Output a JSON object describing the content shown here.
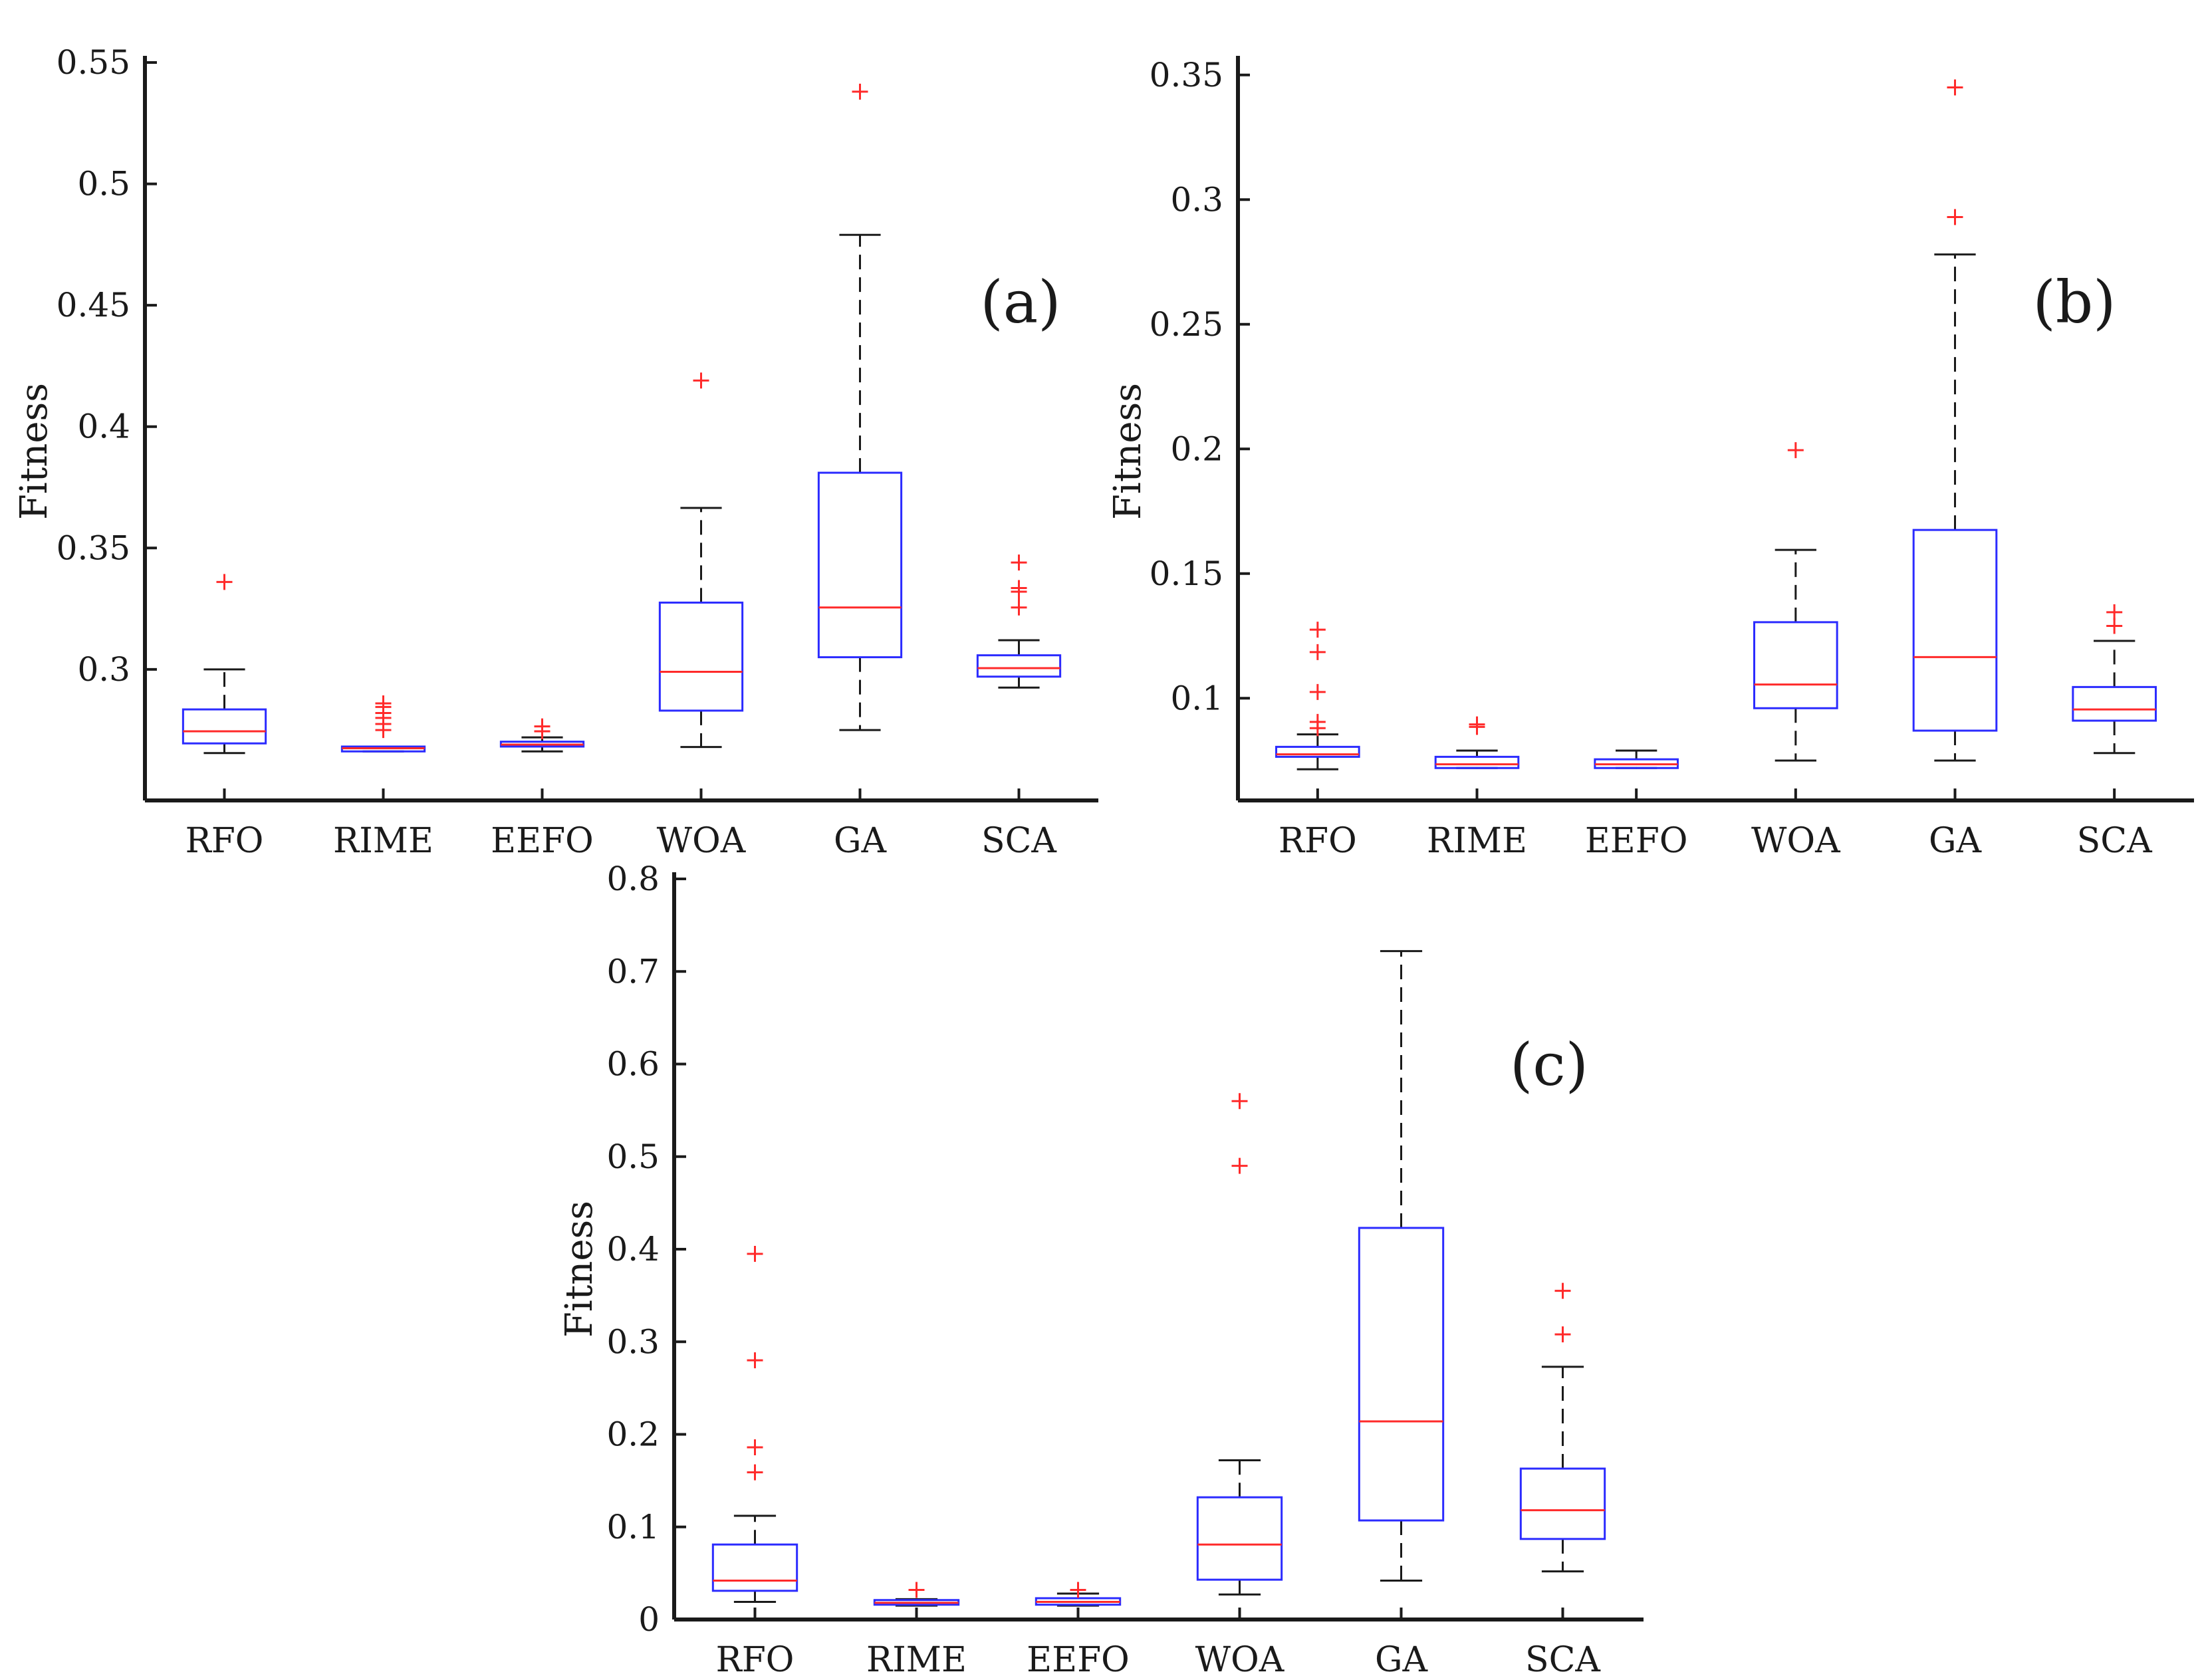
{
  "colors": {
    "box": "#2b2bff",
    "median": "#ff2a2a",
    "whisker": "#1a1a1a",
    "outlier": "#ff2a2a",
    "axis": "#1a1a1a"
  },
  "chart_data": [
    {
      "type": "box",
      "panel_label": "(a)",
      "ylabel": "Fitness",
      "ylim": [
        0.246,
        0.55
      ],
      "yticks": [
        0.3,
        0.35,
        0.4,
        0.45,
        0.5,
        0.55
      ],
      "ytick_labels": [
        "0.3",
        "0.35",
        "0.4",
        "0.45",
        "0.5",
        "0.55"
      ],
      "categories": [
        "RFO",
        "RIME",
        "EEFO",
        "WOA",
        "GA",
        "SCA"
      ],
      "boxes": [
        {
          "whislo": 0.2655,
          "q1": 0.2695,
          "med": 0.2745,
          "q3": 0.2835,
          "whishi": 0.3,
          "fliers": [
            0.336
          ]
        },
        {
          "whislo": 0.2662,
          "q1": 0.2662,
          "med": 0.2675,
          "q3": 0.2682,
          "whishi": 0.2682,
          "fliers": [
            0.275,
            0.2775,
            0.28,
            0.282,
            0.2845,
            0.286
          ]
        },
        {
          "whislo": 0.2662,
          "q1": 0.2682,
          "med": 0.269,
          "q3": 0.2702,
          "whishi": 0.272,
          "fliers": [
            0.2745,
            0.2765
          ]
        },
        {
          "whislo": 0.268,
          "q1": 0.283,
          "med": 0.299,
          "q3": 0.3275,
          "whishi": 0.3665,
          "fliers": [
            0.419
          ]
        },
        {
          "whislo": 0.275,
          "q1": 0.305,
          "med": 0.3255,
          "q3": 0.381,
          "whishi": 0.479,
          "fliers": [
            0.538
          ]
        },
        {
          "whislo": 0.2925,
          "q1": 0.297,
          "med": 0.3005,
          "q3": 0.3058,
          "whishi": 0.312,
          "fliers": [
            0.3255,
            0.332,
            0.3335,
            0.344
          ]
        }
      ]
    },
    {
      "type": "box",
      "panel_label": "(b)",
      "ylabel": "Fitness",
      "ylim": [
        0.059,
        0.355
      ],
      "yticks": [
        0.1,
        0.15,
        0.2,
        0.25,
        0.3,
        0.35
      ],
      "ytick_labels": [
        "0.1",
        "0.15",
        "0.2",
        "0.25",
        "0.3",
        "0.35"
      ],
      "categories": [
        "RFO",
        "RIME",
        "EEFO",
        "WOA",
        "GA",
        "SCA"
      ],
      "boxes": [
        {
          "whislo": 0.0715,
          "q1": 0.0765,
          "med": 0.0775,
          "q3": 0.0805,
          "whishi": 0.0855,
          "fliers": [
            0.088,
            0.0905,
            0.1025,
            0.1185,
            0.1275
          ]
        },
        {
          "whislo": 0.072,
          "q1": 0.072,
          "med": 0.0735,
          "q3": 0.0765,
          "whishi": 0.079,
          "fliers": [
            0.0885,
            0.0895
          ]
        },
        {
          "whislo": 0.072,
          "q1": 0.072,
          "med": 0.0735,
          "q3": 0.0755,
          "whishi": 0.079,
          "fliers": []
        },
        {
          "whislo": 0.075,
          "q1": 0.096,
          "med": 0.1055,
          "q3": 0.1305,
          "whishi": 0.1595,
          "fliers": [
            0.1995
          ]
        },
        {
          "whislo": 0.075,
          "q1": 0.087,
          "med": 0.1165,
          "q3": 0.1675,
          "whishi": 0.278,
          "fliers": [
            0.293,
            0.345
          ]
        },
        {
          "whislo": 0.078,
          "q1": 0.091,
          "med": 0.0955,
          "q3": 0.1045,
          "whishi": 0.123,
          "fliers": [
            0.129,
            0.1345
          ]
        }
      ]
    },
    {
      "type": "box",
      "panel_label": "(c)",
      "ylabel": "Fitness",
      "ylim": [
        0,
        0.8
      ],
      "yticks": [
        0,
        0.1,
        0.2,
        0.3,
        0.4,
        0.5,
        0.6,
        0.7,
        0.8
      ],
      "ytick_labels": [
        "0",
        "0.1",
        "0.2",
        "0.3",
        "0.4",
        "0.5",
        "0.6",
        "0.7",
        "0.8"
      ],
      "categories": [
        "RFO",
        "RIME",
        "EEFO",
        "WOA",
        "GA",
        "SCA"
      ],
      "boxes": [
        {
          "whislo": 0.019,
          "q1": 0.031,
          "med": 0.042,
          "q3": 0.081,
          "whishi": 0.112,
          "fliers": [
            0.159,
            0.186,
            0.28,
            0.395
          ]
        },
        {
          "whislo": 0.015,
          "q1": 0.016,
          "med": 0.018,
          "q3": 0.021,
          "whishi": 0.022,
          "fliers": [
            0.032
          ]
        },
        {
          "whislo": 0.015,
          "q1": 0.016,
          "med": 0.019,
          "q3": 0.023,
          "whishi": 0.028,
          "fliers": [
            0.032
          ]
        },
        {
          "whislo": 0.027,
          "q1": 0.043,
          "med": 0.081,
          "q3": 0.132,
          "whishi": 0.172,
          "fliers": [
            0.49,
            0.56
          ]
        },
        {
          "whislo": 0.042,
          "q1": 0.107,
          "med": 0.214,
          "q3": 0.423,
          "whishi": 0.722,
          "fliers": []
        },
        {
          "whislo": 0.052,
          "q1": 0.087,
          "med": 0.118,
          "q3": 0.163,
          "whishi": 0.273,
          "fliers": [
            0.308,
            0.355
          ]
        }
      ]
    }
  ]
}
